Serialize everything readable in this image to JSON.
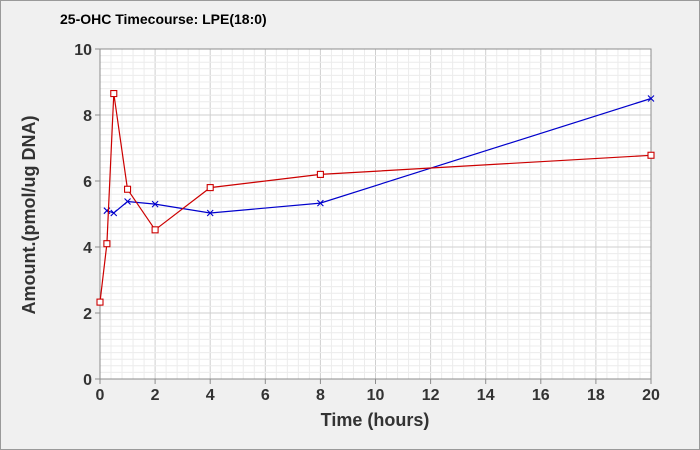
{
  "chart_data": {
    "type": "line",
    "title": "25-OHC Timecourse: LPE(18:0)",
    "xlabel": "Time (hours)",
    "ylabel": "Amount.(pmol/ug DNA)",
    "xlim": [
      0,
      20
    ],
    "ylim": [
      0,
      10
    ],
    "xticks": [
      0,
      2,
      4,
      6,
      8,
      10,
      12,
      14,
      16,
      18,
      20
    ],
    "yticks": [
      0,
      2,
      4,
      6,
      8,
      10
    ],
    "grid": true,
    "legend": "none",
    "series": [
      {
        "color": "#0000cc",
        "marker": "x",
        "x": [
          0.25,
          0.5,
          1,
          2,
          4,
          8,
          20
        ],
        "y": [
          5.1,
          5.03,
          5.38,
          5.3,
          5.03,
          5.33,
          8.5
        ]
      },
      {
        "color": "#cc0000",
        "marker": "square",
        "x": [
          0,
          0.25,
          0.5,
          1,
          2,
          4,
          8,
          20
        ],
        "y": [
          2.33,
          4.1,
          8.65,
          5.75,
          4.52,
          5.8,
          6.2,
          6.78
        ]
      }
    ]
  }
}
